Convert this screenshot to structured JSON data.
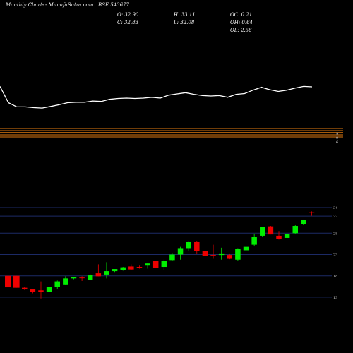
{
  "header": {
    "periodicity": "Monthly Charts",
    "site": "- MunafaSutra.com",
    "symbol": "BSE 543677"
  },
  "ohlc": {
    "open": "O: 32.90",
    "high": "H: 33.11",
    "oc": "OC: 0.21",
    "close": "C: 32.83",
    "low": "L: 32.08",
    "oh": "OH: 0.64",
    "ol": "OL: 2.56"
  },
  "colors": {
    "background": "#000000",
    "up": "#00ee00",
    "down": "#ee0000",
    "line": "#ffffff",
    "bands": "#e07a10",
    "grid": "#1c2a66"
  },
  "chart_data": [
    {
      "type": "line",
      "title": "",
      "values": [
        29.4,
        25.5,
        24.5,
        24.5,
        24.3,
        24.2,
        24.6,
        25.0,
        25.5,
        25.6,
        25.6,
        25.9,
        25.8,
        26.3,
        26.5,
        26.6,
        26.5,
        26.6,
        26.8,
        26.6,
        27.3,
        27.6,
        27.9,
        27.5,
        27.2,
        27.1,
        27.2,
        26.8,
        27.5,
        27.7,
        28.5,
        29.2,
        28.6,
        28.2,
        28.5,
        29.0,
        29.4,
        29.3
      ],
      "y_range": [
        20.5,
        31.5
      ]
    },
    {
      "type": "candlestick",
      "title": "",
      "ylabel_ticks": [
        "34",
        "32",
        "28",
        "23",
        "18",
        "13"
      ],
      "y_range": [
        11.5,
        35
      ],
      "candles": [
        {
          "open": 18.0,
          "high": 18.0,
          "low": 15.3,
          "close": 15.3
        },
        {
          "open": 18.0,
          "high": 18.0,
          "low": 15.2,
          "close": 15.2
        },
        {
          "open": 15.2,
          "high": 15.4,
          "low": 14.7,
          "close": 14.9
        },
        {
          "open": 14.9,
          "high": 14.9,
          "low": 13.9,
          "close": 14.3
        },
        {
          "open": 14.6,
          "high": 16.7,
          "low": 12.7,
          "close": 14.2
        },
        {
          "open": 14.2,
          "high": 15.6,
          "low": 12.7,
          "close": 15.4
        },
        {
          "open": 15.4,
          "high": 16.9,
          "low": 14.9,
          "close": 16.7
        },
        {
          "open": 16.0,
          "high": 17.9,
          "low": 15.9,
          "close": 17.4
        },
        {
          "open": 17.4,
          "high": 17.7,
          "low": 17.2,
          "close": 17.7
        },
        {
          "open": 17.6,
          "high": 17.9,
          "low": 16.8,
          "close": 17.5
        },
        {
          "open": 17.1,
          "high": 18.4,
          "low": 17.0,
          "close": 18.2
        },
        {
          "open": 18.6,
          "high": 20.7,
          "low": 17.9,
          "close": 17.9
        },
        {
          "open": 18.3,
          "high": 21.2,
          "low": 17.4,
          "close": 19.1
        },
        {
          "open": 19.1,
          "high": 19.5,
          "low": 18.9,
          "close": 19.6
        },
        {
          "open": 19.4,
          "high": 20.1,
          "low": 19.2,
          "close": 20.0
        },
        {
          "open": 20.2,
          "high": 20.7,
          "low": 19.4,
          "close": 19.5
        },
        {
          "open": 20.1,
          "high": 20.4,
          "low": 19.7,
          "close": 20.0
        },
        {
          "open": 20.4,
          "high": 21.0,
          "low": 19.7,
          "close": 20.9
        },
        {
          "open": 21.5,
          "high": 21.5,
          "low": 19.8,
          "close": 19.8
        },
        {
          "open": 20.1,
          "high": 21.8,
          "low": 19.3,
          "close": 21.5
        },
        {
          "open": 21.7,
          "high": 23.2,
          "low": 21.6,
          "close": 23.0
        },
        {
          "open": 23.0,
          "high": 24.8,
          "low": 21.8,
          "close": 24.5
        },
        {
          "open": 24.5,
          "high": 26.0,
          "low": 23.9,
          "close": 25.9
        },
        {
          "open": 25.9,
          "high": 26.1,
          "low": 23.1,
          "close": 23.9
        },
        {
          "open": 23.8,
          "high": 23.9,
          "low": 22.4,
          "close": 22.7
        },
        {
          "open": 22.9,
          "high": 25.3,
          "low": 22.0,
          "close": 22.8
        },
        {
          "open": 22.9,
          "high": 24.6,
          "low": 21.8,
          "close": 23.1
        },
        {
          "open": 22.9,
          "high": 23.1,
          "low": 21.9,
          "close": 22.0
        },
        {
          "open": 21.8,
          "high": 24.5,
          "low": 21.6,
          "close": 24.3
        },
        {
          "open": 24.0,
          "high": 25.0,
          "low": 23.9,
          "close": 24.8
        },
        {
          "open": 25.3,
          "high": 27.9,
          "low": 24.9,
          "close": 27.1
        },
        {
          "open": 27.4,
          "high": 29.5,
          "low": 27.2,
          "close": 29.4
        },
        {
          "open": 29.6,
          "high": 29.7,
          "low": 27.7,
          "close": 27.7
        },
        {
          "open": 27.4,
          "high": 28.5,
          "low": 26.5,
          "close": 26.7
        },
        {
          "open": 26.9,
          "high": 28.0,
          "low": 26.8,
          "close": 27.8
        },
        {
          "open": 28.0,
          "high": 29.9,
          "low": 27.9,
          "close": 29.7
        },
        {
          "open": 30.2,
          "high": 31.2,
          "low": 29.9,
          "close": 31.1
        },
        {
          "open": 32.9,
          "high": 33.11,
          "low": 32.08,
          "close": 32.83
        }
      ]
    }
  ]
}
